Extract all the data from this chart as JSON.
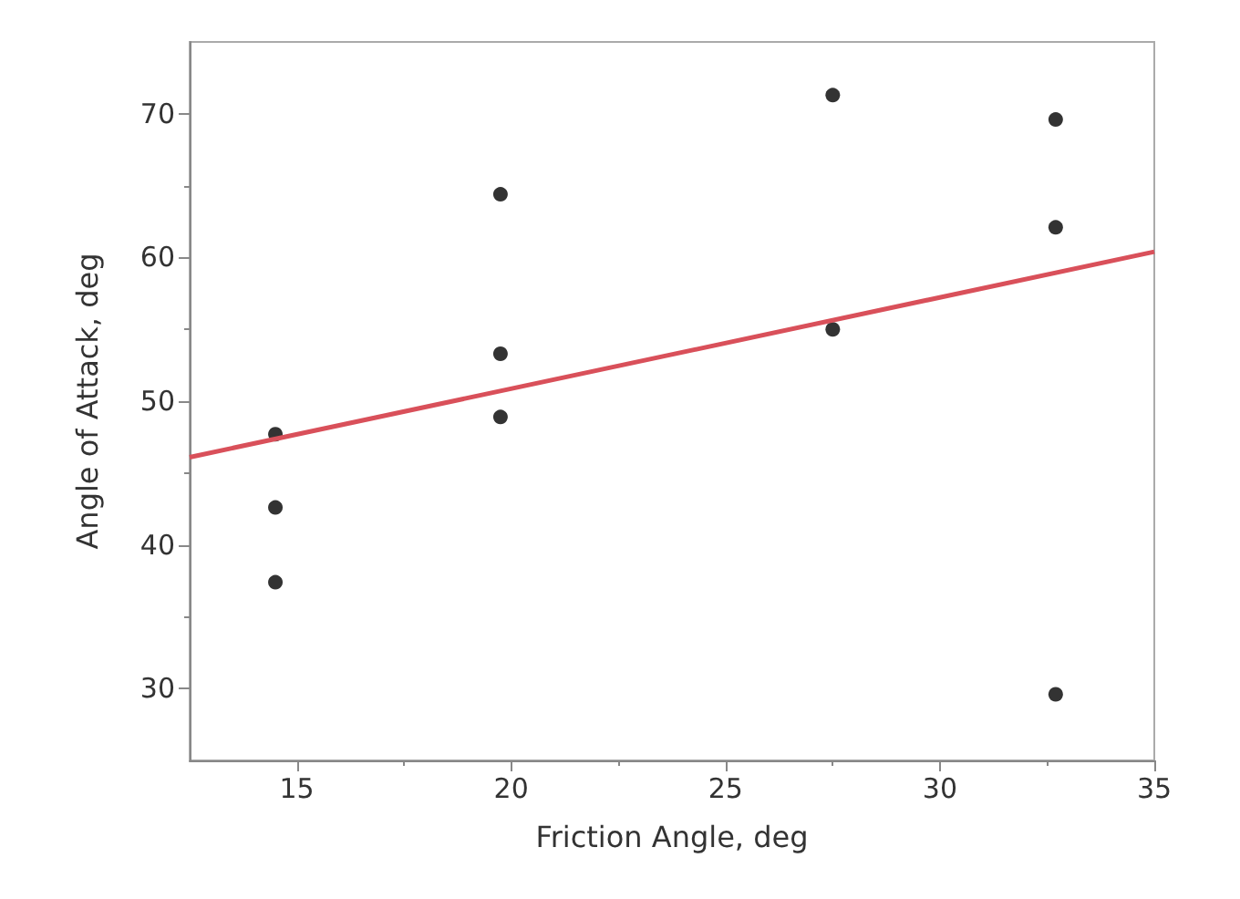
{
  "chart_data": {
    "type": "scatter",
    "xlabel": "Friction Angle, deg",
    "ylabel": "Angle of Attack, deg",
    "xlim": [
      12.5,
      35
    ],
    "xticks": [
      15,
      20,
      25,
      30,
      35
    ],
    "ylim": [
      25,
      75
    ],
    "yticks": [
      30,
      40,
      50,
      60,
      70
    ],
    "grid": false,
    "series": [
      {
        "color": "#000000",
        "marker": "circle",
        "x": [
          14.5,
          14.5,
          14.5,
          19.75,
          19.75,
          19.75,
          27.5,
          27.5,
          32.7,
          32.7,
          32.7
        ],
        "values": [
          47.7,
          42.6,
          37.4,
          64.4,
          53.3,
          48.9,
          71.3,
          55.0,
          69.6,
          62.1,
          29.6
        ]
      },
      {
        "type": "line",
        "color": "#d9505a",
        "x": [
          12.5,
          35
        ],
        "values": [
          46.1,
          60.4
        ]
      }
    ]
  }
}
